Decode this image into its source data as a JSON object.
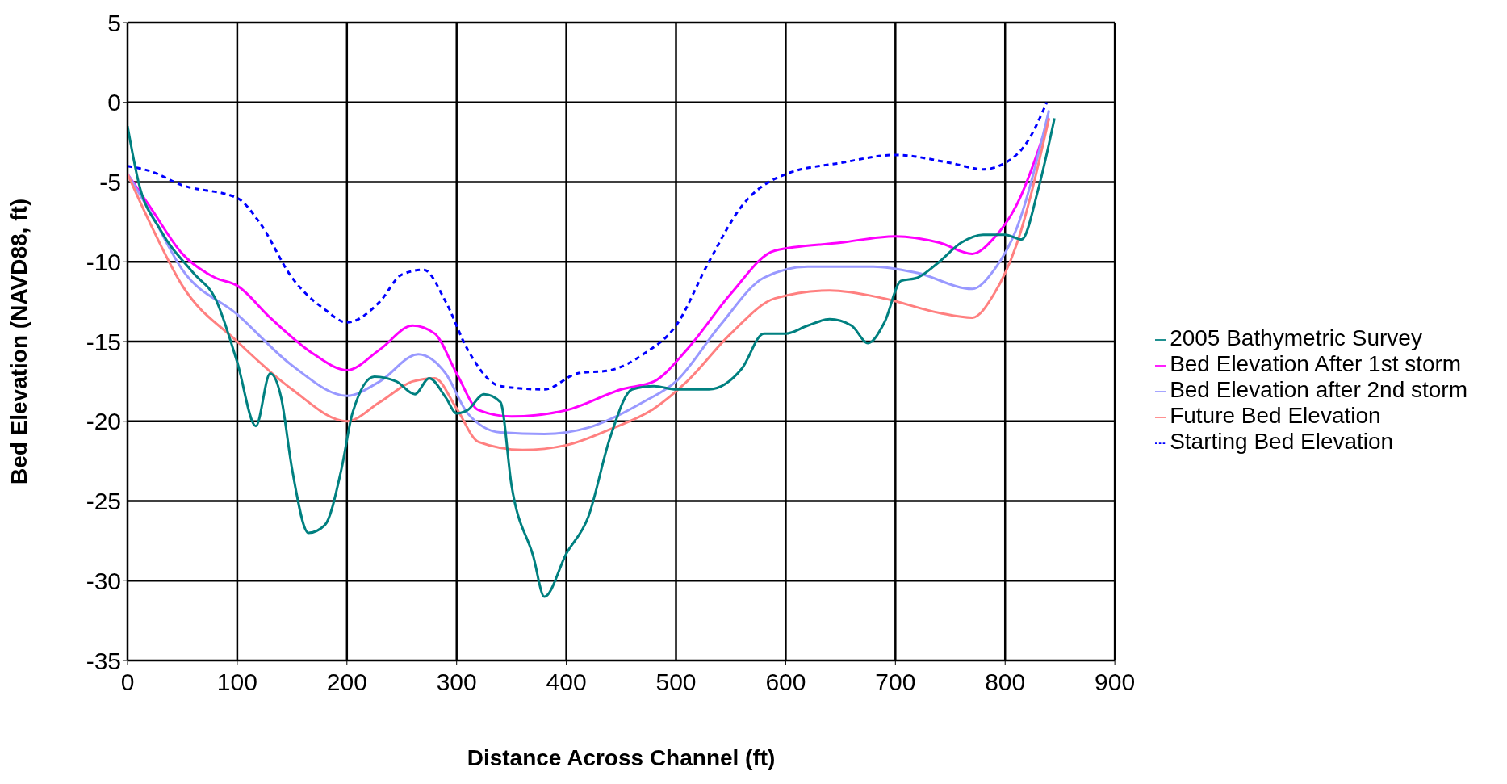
{
  "chart_data": {
    "type": "line",
    "xlabel": "Distance Across Channel (ft)",
    "ylabel": "Bed Elevation (NAVD88, ft)",
    "xlim": [
      0,
      900
    ],
    "xticks": [
      0,
      100,
      200,
      300,
      400,
      500,
      600,
      700,
      800,
      900
    ],
    "ylim": [
      -35,
      5
    ],
    "yticks": [
      -35,
      -30,
      -25,
      -20,
      -15,
      -10,
      -5,
      0,
      5
    ],
    "grid": true,
    "legend": "right",
    "marker": "none",
    "series": [
      {
        "name": "Starting Bed Elevation",
        "color": "#0000ff",
        "line_style": "dashed",
        "x": [
          0,
          20,
          50,
          100,
          120,
          150,
          180,
          200,
          230,
          250,
          270,
          290,
          310,
          340,
          380,
          410,
          440,
          470,
          500,
          530,
          560,
          600,
          650,
          700,
          750,
          780,
          800,
          820,
          838
        ],
        "values": [
          -4,
          -4.3,
          -5.2,
          -6,
          -7.5,
          -11,
          -13,
          -13.8,
          -12.5,
          -10.8,
          -10.5,
          -12.5,
          -15.5,
          -17.8,
          -18,
          -17,
          -16.8,
          -15.8,
          -14,
          -10,
          -6.5,
          -4.5,
          -3.8,
          -3.3,
          -3.8,
          -4.2,
          -3.8,
          -2.5,
          0
        ]
      },
      {
        "name": "Bed Elevation After 1st storm",
        "color": "#ff00ff",
        "line_style": "solid",
        "x": [
          0,
          20,
          50,
          80,
          100,
          130,
          170,
          200,
          230,
          260,
          280,
          300,
          320,
          350,
          400,
          450,
          480,
          510,
          550,
          590,
          650,
          700,
          740,
          770,
          790,
          810,
          840
        ],
        "values": [
          -4.5,
          -6.5,
          -9.5,
          -11,
          -11.5,
          -13.5,
          -15.8,
          -16.8,
          -15.5,
          -14,
          -14.5,
          -17,
          -19.3,
          -19.7,
          -19.3,
          -18,
          -17.5,
          -15.5,
          -12,
          -9.3,
          -8.8,
          -8.4,
          -8.8,
          -9.5,
          -8.5,
          -6.5,
          -1
        ]
      },
      {
        "name": "Bed Elevation after 2nd storm",
        "color": "#9999ff",
        "line_style": "solid",
        "x": [
          0,
          20,
          50,
          100,
          150,
          200,
          230,
          265,
          290,
          310,
          340,
          380,
          420,
          470,
          500,
          540,
          580,
          620,
          680,
          720,
          770,
          790,
          810,
          840
        ],
        "values": [
          -4.5,
          -6.8,
          -10.5,
          -13.3,
          -16.5,
          -18.4,
          -17.5,
          -15.8,
          -17,
          -19.5,
          -20.7,
          -20.8,
          -20.4,
          -18.8,
          -17.5,
          -14,
          -11,
          -10.3,
          -10.3,
          -10.7,
          -11.7,
          -10.5,
          -8,
          -0.5
        ]
      },
      {
        "name": "Future Bed Elevation",
        "color": "#ff8080",
        "line_style": "solid",
        "x": [
          0,
          20,
          50,
          100,
          150,
          200,
          230,
          260,
          280,
          300,
          320,
          360,
          400,
          440,
          480,
          510,
          550,
          590,
          640,
          690,
          740,
          770,
          790,
          810,
          840
        ],
        "values": [
          -4.5,
          -7.5,
          -11.5,
          -15,
          -18,
          -20,
          -18.8,
          -17.5,
          -17.3,
          -19.2,
          -21.3,
          -21.8,
          -21.5,
          -20.5,
          -19.2,
          -17.5,
          -14.5,
          -12.3,
          -11.8,
          -12.3,
          -13.2,
          -13.5,
          -12,
          -9,
          -1
        ]
      },
      {
        "name": "2005 Bathymetric Survey",
        "color": "#008080",
        "line_style": "solid",
        "x": [
          0,
          10,
          30,
          60,
          80,
          100,
          117,
          130,
          140,
          150,
          165,
          180,
          195,
          205,
          225,
          245,
          262,
          275,
          290,
          300,
          310,
          325,
          340,
          350,
          370,
          380,
          400,
          420,
          440,
          460,
          480,
          500,
          530,
          560,
          580,
          600,
          620,
          640,
          660,
          675,
          690,
          705,
          720,
          740,
          760,
          780,
          800,
          815,
          830,
          845
        ],
        "values": [
          -1.5,
          -5,
          -8,
          -10.7,
          -12.3,
          -16.3,
          -20.3,
          -17,
          -18.5,
          -23,
          -27,
          -26.5,
          -23,
          -19.5,
          -17.2,
          -17.5,
          -18.3,
          -17.3,
          -18.5,
          -19.5,
          -19.3,
          -18.3,
          -18.8,
          -24,
          -28.5,
          -31,
          -28.3,
          -26,
          -21,
          -18,
          -17.8,
          -18,
          -18,
          -16.7,
          -14.5,
          -14.5,
          -14,
          -13.6,
          -14,
          -15.1,
          -13.8,
          -11.2,
          -11,
          -10,
          -8.8,
          -8.3,
          -8.3,
          -8.6,
          -5.5,
          -1
        ]
      }
    ]
  }
}
